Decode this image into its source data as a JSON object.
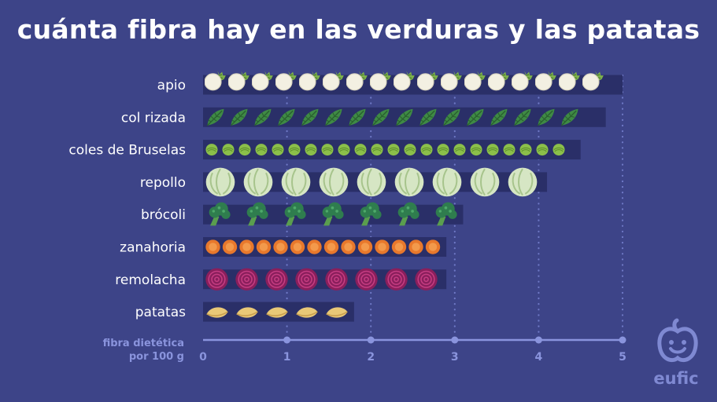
{
  "title": "cuánta fibra hay en las verduras y las patatas",
  "brand": "eufic",
  "colors": {
    "background": "#3d4488",
    "bar_track": "#2a2f68",
    "axis": "#8a94dd",
    "label": "#ffffff",
    "grid_dots": "#6f79c6"
  },
  "chart_data": {
    "type": "bar",
    "orientation": "horizontal",
    "categories": [
      "apio",
      "col rizada",
      "coles de Bruselas",
      "repollo",
      "brócoli",
      "zanahoria",
      "remolacha",
      "patatas"
    ],
    "values": [
      5.0,
      4.8,
      4.5,
      4.1,
      3.1,
      2.9,
      2.9,
      1.8
    ],
    "icons": [
      "celery-icon",
      "kale-icon",
      "brussels-sprout-icon",
      "cabbage-icon",
      "broccoli-icon",
      "carrot-slice-icon",
      "beetroot-icon",
      "potato-icon"
    ],
    "xlabel": [
      "fibra dietética",
      "por 100 g"
    ],
    "xlim": [
      0,
      5
    ],
    "xticks": [
      0,
      1,
      2,
      3,
      4,
      5
    ],
    "grid": "dotted vertical"
  }
}
